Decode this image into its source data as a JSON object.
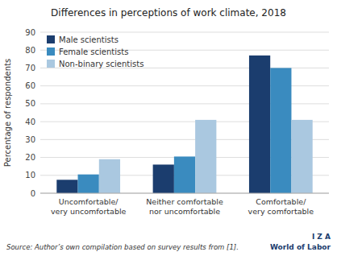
{
  "chart_data": {
    "type": "bar",
    "title": "Differences in perceptions of work climate, 2018",
    "y_label": "Percentage of respondents",
    "categories": [
      "Uncomfortable/\nvery uncomfortable",
      "Neither comfortable\nnor uncomfortable",
      "Comfortable/\nvery comfortable"
    ],
    "series": [
      {
        "name": "Male scientists",
        "color": "#1b3d6e",
        "values": [
          7.5,
          16,
          77
        ]
      },
      {
        "name": "Female scientists",
        "color": "#3a8bbf",
        "values": [
          10.5,
          20.5,
          70
        ]
      },
      {
        "name": "Non-binary scientists",
        "color": "#aac8e0",
        "values": [
          19,
          41,
          41
        ]
      }
    ],
    "ylim": [
      0,
      90
    ],
    "yticks": [
      0,
      10,
      20,
      30,
      40,
      50,
      60,
      70,
      80,
      90
    ],
    "grid": true,
    "legend": "upper left",
    "annotations": [
      "Source: Author’s own compilation based on survey results from [1].",
      "I  Z  A",
      "World of Labor"
    ]
  }
}
